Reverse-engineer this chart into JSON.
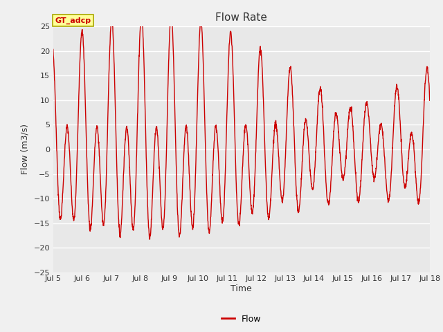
{
  "title": "Flow Rate",
  "xlabel": "Time",
  "ylabel": "Flow (m3/s)",
  "legend_label": "Flow",
  "annotation_text": "GT_adcp",
  "ylim": [
    -25,
    25
  ],
  "yticks": [
    -25,
    -20,
    -15,
    -10,
    -5,
    0,
    5,
    10,
    15,
    20,
    25
  ],
  "x_tick_labels": [
    "Jul 5",
    "Jul 6",
    "Jul 7",
    "Jul 8",
    "Jul 9",
    "Jul 10",
    "Jul 11",
    "Jul 12",
    "Jul 13",
    "Jul 14",
    "Jul 15",
    "Jul 16",
    "Jul 17",
    "Jul 18"
  ],
  "line_color": "#cc0000",
  "background_color": "#dcdcdc",
  "plot_bg_color": "#e8e8e8",
  "grid_color": "#ffffff",
  "fig_bg_color": "#f0f0f0",
  "annotation_bg": "#ffff99",
  "annotation_border": "#aaa800"
}
